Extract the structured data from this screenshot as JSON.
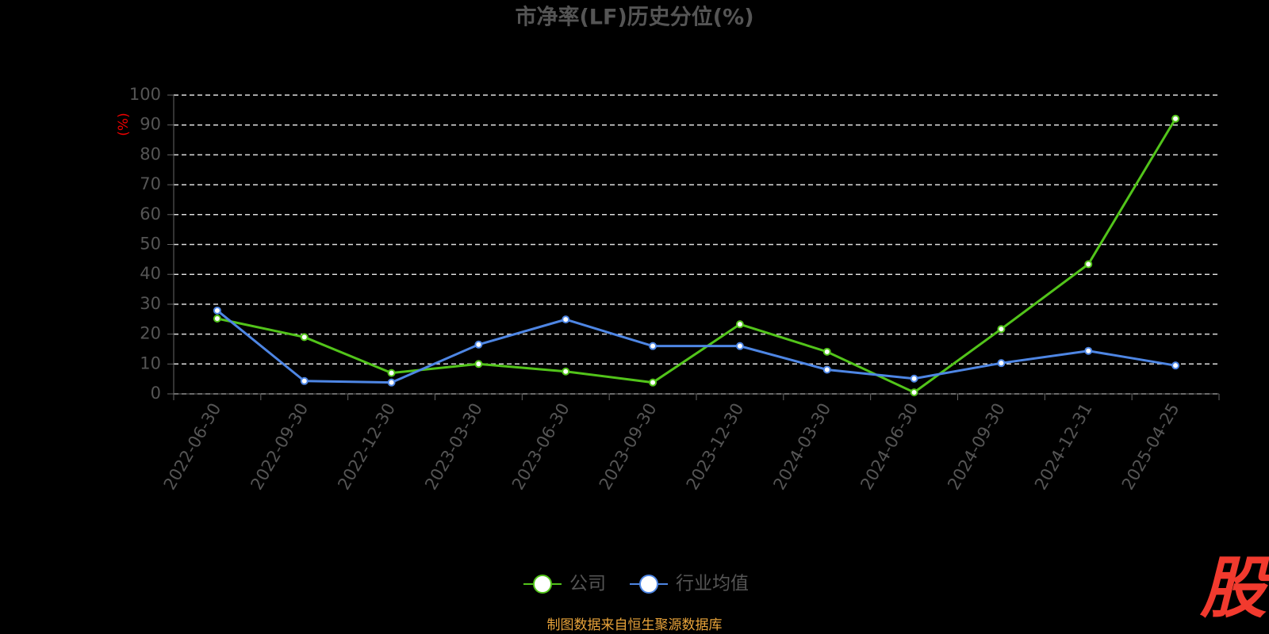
{
  "chart_data": {
    "type": "line",
    "title": "市净率(LF)历史分位(%)",
    "y_label": "(%)",
    "categories": [
      "2022-06-30",
      "2022-09-30",
      "2022-12-30",
      "2023-03-30",
      "2023-06-30",
      "2023-09-30",
      "2023-12-30",
      "2024-03-30",
      "2024-06-30",
      "2024-09-30",
      "2024-12-31",
      "2025-04-25"
    ],
    "series": [
      {
        "name": "公司",
        "color": "#52c41a",
        "values": [
          25.2,
          19,
          7,
          10,
          7.5,
          3.8,
          23.3,
          14.1,
          0.5,
          21.7,
          43.4,
          92.1
        ]
      },
      {
        "name": "行业均值",
        "color": "#4e86e4",
        "values": [
          27.9,
          4.3,
          3.8,
          16.5,
          24.9,
          16,
          16,
          8.1,
          5.1,
          10.3,
          14.4,
          9.5
        ]
      }
    ],
    "ylim": [
      0,
      100
    ],
    "yticks": [
      0,
      10,
      20,
      30,
      40,
      50,
      60,
      70,
      80,
      90,
      100
    ],
    "grid": true,
    "source": "制图数据来自恒生聚源数据库",
    "watermark": "股"
  }
}
